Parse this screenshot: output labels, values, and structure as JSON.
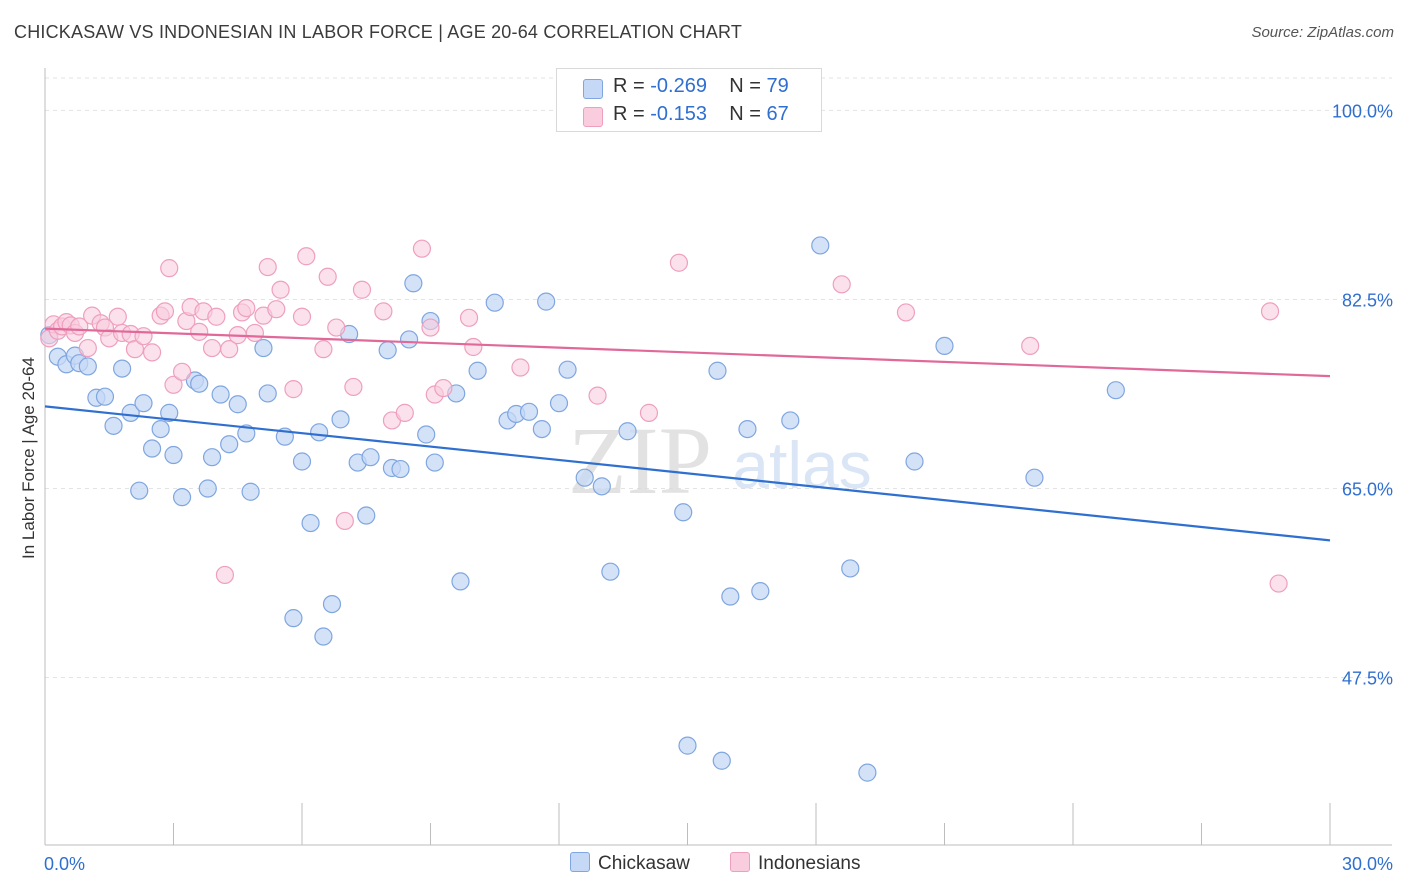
{
  "title": "CHICKASAW VS INDONESIAN IN LABOR FORCE | AGE 20-64 CORRELATION CHART",
  "source": "Source: ZipAtlas.com",
  "watermark": {
    "zip": "ZIP",
    "atlas": "atlas"
  },
  "colors": {
    "blue": "#2f6fd0",
    "blue_fill": "#c5d8f5",
    "blue_stroke": "#7fa6e0",
    "pink": "#e0699a",
    "pink_fill": "#f9cddd",
    "pink_stroke": "#ef9fbe",
    "grid": "#e3e3e3",
    "axis_label": "#2f6fd0"
  },
  "legend": {
    "rows": [
      {
        "r_label": "R = ",
        "r_value": "-0.269",
        "n_label": "N = ",
        "n_value": "79"
      },
      {
        "r_label": "R = ",
        "r_value": "-0.153",
        "n_label": "N = ",
        "n_value": "67"
      }
    ]
  },
  "bottom_legend": [
    "Chickasaw",
    "Indonesians"
  ],
  "chart_data": {
    "type": "scatter",
    "title": "CHICKASAW VS INDONESIAN IN LABOR FORCE | AGE 20-64 CORRELATION CHART",
    "xlabel": "",
    "ylabel": "In Labor Force | Age 20-64",
    "xlim": [
      0,
      30
    ],
    "ylim": [
      32.0,
      103.0
    ],
    "x_tick_labels": [
      "0.0%",
      "30.0%"
    ],
    "y_ticks": [
      47.5,
      65.0,
      82.5,
      100.0
    ],
    "y_tick_labels": [
      "47.5%",
      "65.0%",
      "82.5%",
      "100.0%"
    ],
    "grid": true,
    "legend_position": "top-center",
    "series": [
      {
        "name": "Chickasaw",
        "r": -0.269,
        "n": 79,
        "trend": {
          "x": [
            0,
            30
          ],
          "y": [
            72.6,
            60.2
          ]
        },
        "points": [
          [
            0.1,
            79.2
          ],
          [
            0.3,
            77.2
          ],
          [
            0.5,
            76.5
          ],
          [
            0.7,
            77.3
          ],
          [
            0.8,
            76.6
          ],
          [
            1.0,
            76.3
          ],
          [
            1.2,
            73.4
          ],
          [
            1.4,
            73.5
          ],
          [
            1.6,
            70.8
          ],
          [
            1.8,
            76.1
          ],
          [
            2.0,
            72.0
          ],
          [
            2.2,
            64.8
          ],
          [
            2.3,
            72.9
          ],
          [
            2.5,
            68.7
          ],
          [
            2.7,
            70.5
          ],
          [
            2.9,
            72.0
          ],
          [
            3.0,
            68.1
          ],
          [
            3.2,
            64.2
          ],
          [
            3.5,
            75.0
          ],
          [
            3.6,
            74.7
          ],
          [
            3.8,
            65.0
          ],
          [
            3.9,
            67.9
          ],
          [
            4.1,
            73.7
          ],
          [
            4.3,
            69.1
          ],
          [
            4.5,
            72.8
          ],
          [
            4.7,
            70.1
          ],
          [
            4.8,
            64.7
          ],
          [
            5.1,
            78.0
          ],
          [
            5.2,
            73.8
          ],
          [
            5.6,
            69.8
          ],
          [
            5.8,
            53.0
          ],
          [
            6.0,
            67.5
          ],
          [
            6.2,
            61.8
          ],
          [
            6.4,
            70.2
          ],
          [
            6.5,
            51.3
          ],
          [
            6.7,
            54.3
          ],
          [
            6.9,
            71.4
          ],
          [
            7.1,
            79.3
          ],
          [
            7.3,
            67.4
          ],
          [
            7.5,
            62.5
          ],
          [
            7.6,
            67.9
          ],
          [
            8.0,
            77.8
          ],
          [
            8.1,
            66.9
          ],
          [
            8.3,
            66.8
          ],
          [
            8.5,
            78.8
          ],
          [
            8.6,
            84.0
          ],
          [
            8.9,
            70.0
          ],
          [
            9.0,
            80.5
          ],
          [
            9.1,
            67.4
          ],
          [
            9.6,
            73.8
          ],
          [
            9.7,
            56.4
          ],
          [
            10.1,
            75.9
          ],
          [
            10.5,
            82.2
          ],
          [
            10.8,
            71.3
          ],
          [
            11.0,
            71.9
          ],
          [
            11.3,
            72.1
          ],
          [
            11.6,
            70.5
          ],
          [
            11.7,
            82.3
          ],
          [
            12.0,
            72.9
          ],
          [
            12.2,
            76.0
          ],
          [
            12.6,
            66.0
          ],
          [
            13.0,
            65.2
          ],
          [
            13.2,
            57.3
          ],
          [
            13.6,
            70.3
          ],
          [
            14.9,
            62.8
          ],
          [
            15.0,
            41.2
          ],
          [
            15.7,
            75.9
          ],
          [
            15.8,
            39.8
          ],
          [
            16.0,
            55.0
          ],
          [
            16.4,
            70.5
          ],
          [
            16.7,
            55.5
          ],
          [
            17.4,
            71.3
          ],
          [
            18.1,
            87.5
          ],
          [
            18.8,
            57.6
          ],
          [
            19.2,
            38.7
          ],
          [
            20.3,
            67.5
          ],
          [
            21.0,
            78.2
          ],
          [
            23.1,
            66.0
          ],
          [
            25.0,
            74.1
          ]
        ]
      },
      {
        "name": "Indonesians",
        "r": -0.153,
        "n": 67,
        "trend": {
          "x": [
            0,
            30
          ],
          "y": [
            79.8,
            75.4
          ]
        },
        "points": [
          [
            0.1,
            78.9
          ],
          [
            0.2,
            80.2
          ],
          [
            0.3,
            79.6
          ],
          [
            0.4,
            80.0
          ],
          [
            0.5,
            80.4
          ],
          [
            0.6,
            80.1
          ],
          [
            0.7,
            79.4
          ],
          [
            0.8,
            80.0
          ],
          [
            1.0,
            78.0
          ],
          [
            1.1,
            81.0
          ],
          [
            1.3,
            80.3
          ],
          [
            1.4,
            79.9
          ],
          [
            1.5,
            78.9
          ],
          [
            1.7,
            80.9
          ],
          [
            1.8,
            79.4
          ],
          [
            2.0,
            79.3
          ],
          [
            2.1,
            77.9
          ],
          [
            2.3,
            79.1
          ],
          [
            2.5,
            77.6
          ],
          [
            2.7,
            81.0
          ],
          [
            2.8,
            81.4
          ],
          [
            2.9,
            85.4
          ],
          [
            3.0,
            74.6
          ],
          [
            3.2,
            75.8
          ],
          [
            3.3,
            80.5
          ],
          [
            3.4,
            81.8
          ],
          [
            3.6,
            79.5
          ],
          [
            3.7,
            81.4
          ],
          [
            3.9,
            78.0
          ],
          [
            4.0,
            80.9
          ],
          [
            4.2,
            57.0
          ],
          [
            4.3,
            77.9
          ],
          [
            4.5,
            79.2
          ],
          [
            4.6,
            81.3
          ],
          [
            4.7,
            81.7
          ],
          [
            4.9,
            79.4
          ],
          [
            5.1,
            81.0
          ],
          [
            5.2,
            85.5
          ],
          [
            5.4,
            81.6
          ],
          [
            5.5,
            83.4
          ],
          [
            5.8,
            74.2
          ],
          [
            6.0,
            80.9
          ],
          [
            6.1,
            86.5
          ],
          [
            6.5,
            77.9
          ],
          [
            6.6,
            84.6
          ],
          [
            6.8,
            79.9
          ],
          [
            7.0,
            62.0
          ],
          [
            7.2,
            74.4
          ],
          [
            7.4,
            83.4
          ],
          [
            7.9,
            81.4
          ],
          [
            8.1,
            71.3
          ],
          [
            8.4,
            72.0
          ],
          [
            8.8,
            87.2
          ],
          [
            9.0,
            79.9
          ],
          [
            9.1,
            73.7
          ],
          [
            9.3,
            74.3
          ],
          [
            9.9,
            80.8
          ],
          [
            10.0,
            78.1
          ],
          [
            11.1,
            76.2
          ],
          [
            12.9,
            73.6
          ],
          [
            14.1,
            72.0
          ],
          [
            14.8,
            85.9
          ],
          [
            18.6,
            83.9
          ],
          [
            20.1,
            81.3
          ],
          [
            23.0,
            78.2
          ],
          [
            28.6,
            81.4
          ],
          [
            28.8,
            56.2
          ]
        ]
      }
    ]
  }
}
